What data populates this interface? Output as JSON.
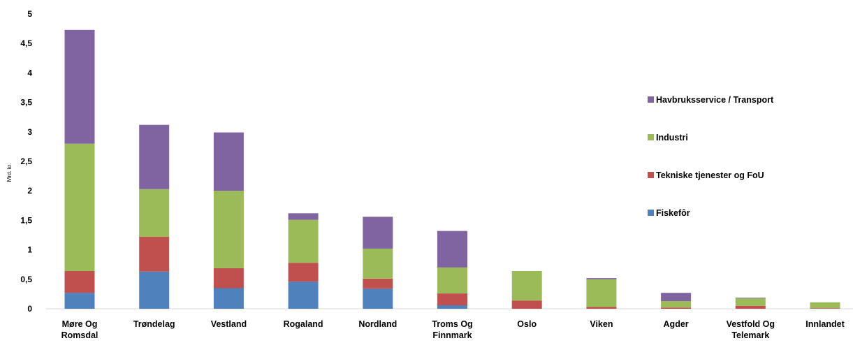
{
  "chart_data": {
    "type": "bar",
    "stacked": true,
    "title": "",
    "xlabel": "",
    "ylabel": "Mrd. kr.",
    "ylim": [
      0,
      5
    ],
    "yticks": [
      "0",
      "0,5",
      "1",
      "1,5",
      "2",
      "2,5",
      "3",
      "3,5",
      "4",
      "4,5",
      "5"
    ],
    "grid": false,
    "legend_position": "right",
    "categories": [
      [
        "Møre Og",
        "Romsdal"
      ],
      [
        "Trøndelag"
      ],
      [
        "Vestland"
      ],
      [
        "Rogaland"
      ],
      [
        "Nordland"
      ],
      [
        "Troms Og",
        "Finnmark"
      ],
      [
        "Oslo"
      ],
      [
        "Viken"
      ],
      [
        "Agder"
      ],
      [
        "Vestfold Og",
        "Telemark"
      ],
      [
        "Innlandet"
      ]
    ],
    "series": [
      {
        "name": "Fiskefôr",
        "color": "#4F81BD",
        "values": [
          0.27,
          0.63,
          0.35,
          0.46,
          0.34,
          0.06,
          0.0,
          0.0,
          0.0,
          0.0,
          0.0
        ]
      },
      {
        "name": "Tekniske tjenester og FoU",
        "color": "#C0504D",
        "values": [
          0.37,
          0.59,
          0.34,
          0.32,
          0.17,
          0.2,
          0.14,
          0.03,
          0.02,
          0.05,
          0.01
        ]
      },
      {
        "name": "Industri",
        "color": "#9BBB59",
        "values": [
          2.16,
          0.81,
          1.31,
          0.73,
          0.51,
          0.44,
          0.5,
          0.47,
          0.11,
          0.13,
          0.1
        ]
      },
      {
        "name": "Havbruksservice / Transport",
        "color": "#8064A2",
        "values": [
          1.93,
          1.09,
          0.99,
          0.11,
          0.54,
          0.62,
          0.0,
          0.02,
          0.14,
          0.01,
          0.0
        ]
      }
    ]
  }
}
